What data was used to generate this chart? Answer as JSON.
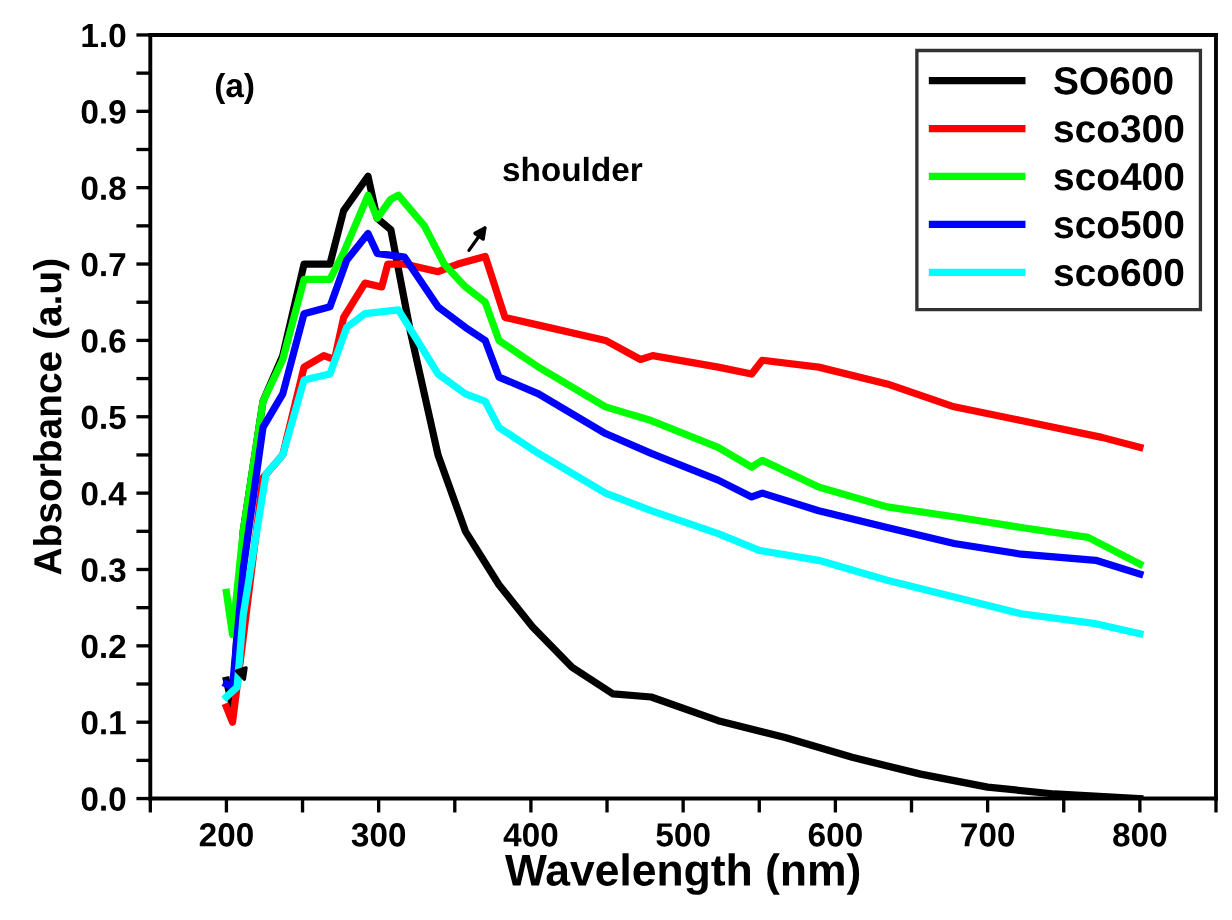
{
  "chart_data": {
    "type": "line",
    "xlabel": "Wavelength (nm)",
    "ylabel": "Absorbance (a.u)",
    "xlim": [
      150,
      850
    ],
    "ylim": [
      0.0,
      1.0
    ],
    "xticks": [
      {
        "value": 150,
        "label": null
      },
      200,
      {
        "value": 250,
        "label": null
      },
      300,
      {
        "value": 350,
        "label": null
      },
      400,
      {
        "value": 450,
        "label": null
      },
      500,
      {
        "value": 550,
        "label": null
      },
      600,
      {
        "value": 650,
        "label": null
      },
      700,
      {
        "value": 750,
        "label": null
      },
      800,
      {
        "value": 850,
        "label": null
      }
    ],
    "yticks": [
      {
        "value": 0,
        "label": "0.0"
      },
      {
        "value": 0.05,
        "label": null
      },
      0.1,
      {
        "value": 0.15,
        "label": null
      },
      0.2,
      {
        "value": 0.25,
        "label": null
      },
      0.3,
      {
        "value": 0.35,
        "label": null
      },
      0.4,
      {
        "value": 0.45,
        "label": null
      },
      0.5,
      {
        "value": 0.55,
        "label": null
      },
      0.6,
      {
        "value": 0.65,
        "label": null
      },
      0.7,
      {
        "value": 0.75,
        "label": null
      },
      0.8,
      {
        "value": 0.85,
        "label": null
      },
      0.9,
      {
        "value": 0.95,
        "label": null
      },
      {
        "value": 1.0,
        "label": "1.0"
      }
    ],
    "grid": false,
    "legend": "top right",
    "marker": "none",
    "line_style": "solid",
    "annotations": [
      "(a)",
      "shoulder"
    ],
    "series": [
      {
        "name": "SO600",
        "color": "#000000",
        "x": [
          200,
          204,
          211,
          224,
          237,
          251,
          268,
          277,
          293,
          299,
          308,
          321,
          339,
          357,
          379,
          401,
          427,
          454,
          479,
          523,
          567,
          611,
          656,
          700,
          744,
          800
        ],
        "values": [
          0.155,
          0.12,
          0.35,
          0.52,
          0.58,
          0.7,
          0.7,
          0.77,
          0.815,
          0.76,
          0.745,
          0.61,
          0.45,
          0.35,
          0.28,
          0.225,
          0.172,
          0.137,
          0.133,
          0.102,
          0.08,
          0.054,
          0.032,
          0.015,
          0.006,
          0.0
        ]
      },
      {
        "name": "sco300",
        "color": "#ff0000",
        "x": [
          200,
          204,
          211,
          224,
          237,
          251,
          264,
          271,
          277,
          291,
          302,
          306,
          317,
          339,
          352,
          370,
          383,
          405,
          449,
          472,
          480,
          523,
          545,
          552,
          589,
          634,
          678,
          722,
          775,
          800
        ],
        "values": [
          0.12,
          0.1,
          0.21,
          0.42,
          0.45,
          0.565,
          0.58,
          0.575,
          0.63,
          0.675,
          0.67,
          0.7,
          0.7,
          0.69,
          0.7,
          0.71,
          0.63,
          0.62,
          0.6,
          0.575,
          0.58,
          0.565,
          0.556,
          0.574,
          0.565,
          0.543,
          0.513,
          0.495,
          0.473,
          0.46
        ]
      },
      {
        "name": "sco400",
        "color": "#00ff00",
        "x": [
          200,
          204,
          211,
          224,
          237,
          251,
          268,
          277,
          293,
          299,
          308,
          313,
          330,
          343,
          357,
          370,
          379,
          405,
          449,
          479,
          523,
          545,
          552,
          589,
          634,
          678,
          722,
          766,
          800
        ],
        "values": [
          0.27,
          0.215,
          0.35,
          0.52,
          0.575,
          0.68,
          0.68,
          0.715,
          0.79,
          0.76,
          0.785,
          0.79,
          0.75,
          0.7,
          0.67,
          0.65,
          0.6,
          0.565,
          0.513,
          0.495,
          0.46,
          0.434,
          0.443,
          0.408,
          0.382,
          0.369,
          0.355,
          0.342,
          0.307
        ]
      },
      {
        "name": "sco500",
        "color": "#0000ff",
        "x": [
          200,
          204,
          211,
          224,
          237,
          251,
          268,
          279,
          293,
          299,
          317,
          339,
          357,
          370,
          379,
          405,
          449,
          479,
          523,
          545,
          552,
          589,
          634,
          678,
          722,
          771,
          800
        ],
        "values": [
          0.15,
          0.146,
          0.3,
          0.486,
          0.53,
          0.635,
          0.644,
          0.705,
          0.74,
          0.714,
          0.709,
          0.644,
          0.617,
          0.6,
          0.552,
          0.53,
          0.478,
          0.452,
          0.417,
          0.395,
          0.4,
          0.377,
          0.355,
          0.334,
          0.32,
          0.312,
          0.294
        ]
      },
      {
        "name": "sco600",
        "color": "#00ffff",
        "x": [
          200,
          207,
          211,
          226,
          237,
          251,
          268,
          279,
          291,
          313,
          339,
          357,
          370,
          379,
          405,
          449,
          479,
          523,
          550,
          589,
          634,
          678,
          722,
          771,
          800
        ],
        "values": [
          0.133,
          0.146,
          0.24,
          0.425,
          0.45,
          0.548,
          0.556,
          0.617,
          0.635,
          0.64,
          0.556,
          0.53,
          0.52,
          0.486,
          0.452,
          0.4,
          0.377,
          0.347,
          0.325,
          0.312,
          0.286,
          0.264,
          0.242,
          0.229,
          0.216
        ]
      }
    ]
  }
}
